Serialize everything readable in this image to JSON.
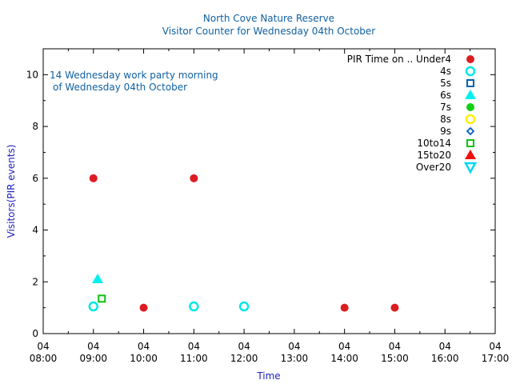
{
  "chart_data": {
    "type": "scatter",
    "title": "North Cove Nature Reserve",
    "subtitle": "Visitor Counter for Wednesday 04th October",
    "xlabel": "Time",
    "ylabel": "Visitors(PIR events)",
    "annotation": [
      "14 Wednesday work party morning",
      "of Wednesday 04th October"
    ],
    "legend_title": "PIR Time on ..",
    "legend_position": "top-right",
    "grid": false,
    "x_ticks": [
      {
        "day": "04",
        "time": "08:00"
      },
      {
        "day": "04",
        "time": "09:00"
      },
      {
        "day": "04",
        "time": "10:00"
      },
      {
        "day": "04",
        "time": "11:00"
      },
      {
        "day": "04",
        "time": "12:00"
      },
      {
        "day": "04",
        "time": "13:00"
      },
      {
        "day": "04",
        "time": "14:00"
      },
      {
        "day": "04",
        "time": "15:00"
      },
      {
        "day": "04",
        "time": "16:00"
      },
      {
        "day": "04",
        "time": "17:00"
      }
    ],
    "xlim": [
      "2023-10-04 08:00",
      "2023-10-04 17:00"
    ],
    "y_ticks": [
      0,
      2,
      4,
      6,
      8,
      10
    ],
    "ylim": [
      0,
      11
    ],
    "series": [
      {
        "name": "Under4",
        "marker": "circle-filled",
        "color": "#dd1c22",
        "points": [
          [
            "2023-10-04 09:00",
            6
          ],
          [
            "2023-10-04 10:00",
            1
          ],
          [
            "2023-10-04 11:00",
            6
          ],
          [
            "2023-10-04 14:00",
            1
          ],
          [
            "2023-10-04 15:00",
            1
          ]
        ]
      },
      {
        "name": "4s",
        "marker": "circle-open",
        "color": "#00e8e8",
        "points": [
          [
            "2023-10-04 09:00",
            1.05
          ],
          [
            "2023-10-04 11:00",
            1.05
          ],
          [
            "2023-10-04 12:00",
            1.05
          ]
        ]
      },
      {
        "name": "5s",
        "marker": "square-open",
        "color": "#0060b0",
        "points": []
      },
      {
        "name": "6s",
        "marker": "triangle-filled",
        "color": "#00f0f0",
        "points": [
          [
            "2023-10-04 09:05",
            2.1
          ]
        ]
      },
      {
        "name": "7s",
        "marker": "circle-filled",
        "color": "#10d010",
        "points": []
      },
      {
        "name": "8s",
        "marker": "circle-open",
        "color": "#ffee00",
        "points": []
      },
      {
        "name": "9s",
        "marker": "diamond-open",
        "color": "#0060c0",
        "points": []
      },
      {
        "name": "10to14",
        "marker": "square-open",
        "color": "#10c010",
        "points": [
          [
            "2023-10-04 09:10",
            1.35
          ]
        ]
      },
      {
        "name": "15to20",
        "marker": "triangle-filled",
        "color": "#ee1010",
        "points": []
      },
      {
        "name": "Over20",
        "marker": "triangle-down-open",
        "color": "#00d8f0",
        "points": []
      }
    ]
  }
}
